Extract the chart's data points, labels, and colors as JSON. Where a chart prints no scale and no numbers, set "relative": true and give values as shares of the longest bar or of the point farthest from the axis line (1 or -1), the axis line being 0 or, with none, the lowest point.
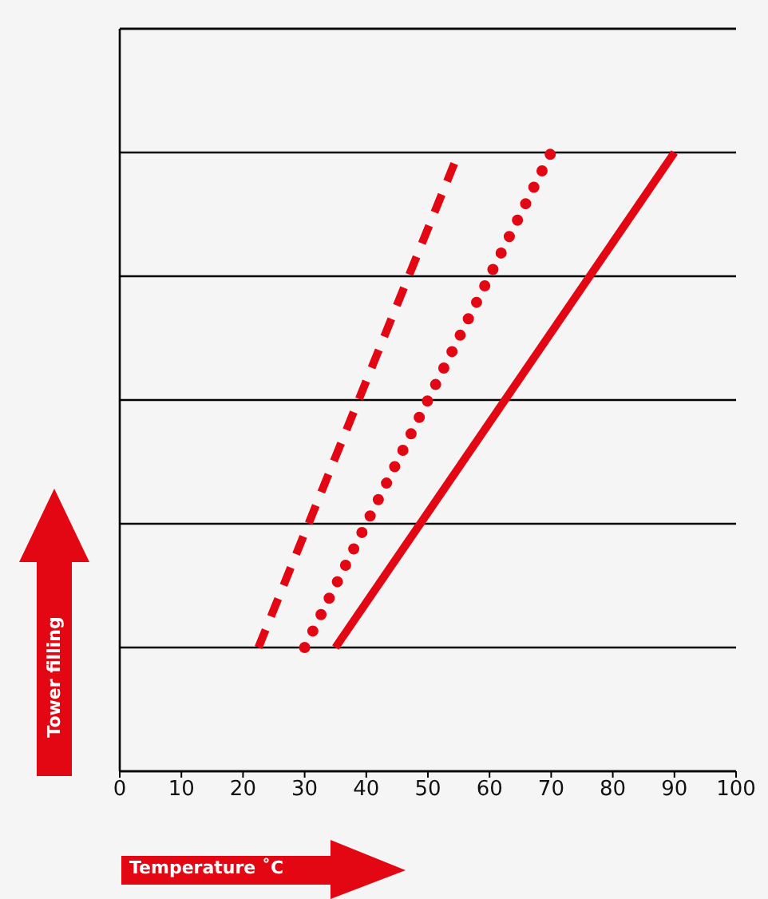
{
  "chart_data": {
    "type": "line",
    "xlabel": "Temperature ˚C",
    "ylabel": "Tower filling",
    "relative": true,
    "xlim": [
      0,
      100
    ],
    "xticks": [
      0,
      10,
      20,
      30,
      40,
      50,
      60,
      70,
      80,
      90,
      100
    ],
    "grid": "y",
    "series": [
      {
        "color": "#e30613",
        "line_style": "dashed",
        "x": [
          22.5,
          55
        ],
        "values": [
          0.2,
          1
        ]
      },
      {
        "color": "#e30613",
        "line_style": "dotted",
        "x": [
          30,
          70
        ],
        "values": [
          0.2,
          1
        ]
      },
      {
        "color": "#e30613",
        "line_style": "solid",
        "x": [
          35,
          90
        ],
        "values": [
          0.2,
          1
        ]
      }
    ]
  }
}
